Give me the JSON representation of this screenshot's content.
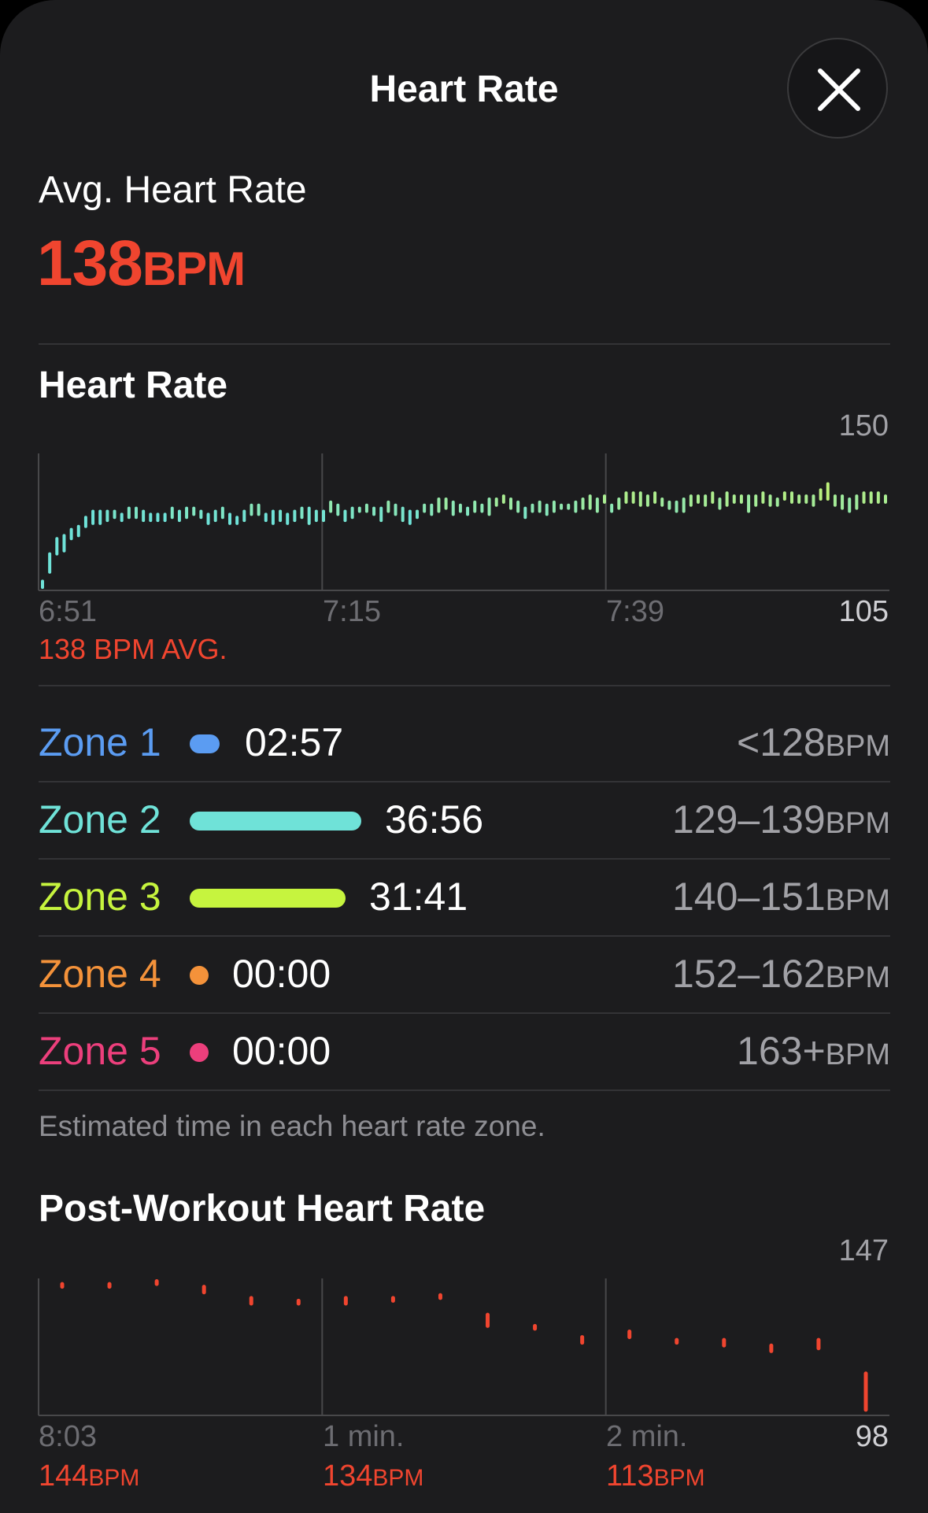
{
  "header": {
    "title": "Heart Rate",
    "close_icon": "close-icon"
  },
  "summary": {
    "label": "Avg. Heart Rate",
    "value": "138",
    "unit": "BPM"
  },
  "hr_section": {
    "title": "Heart Rate",
    "y_max": "150",
    "y_min": "105",
    "x_labels": [
      "6:51",
      "7:15",
      "7:39"
    ],
    "avg_note": "138 BPM AVG."
  },
  "zones": [
    {
      "name": "Zone 1",
      "time": "02:57",
      "range": "<128",
      "unit": "BPM",
      "color": "#5b9cf2"
    },
    {
      "name": "Zone 2",
      "time": "36:56",
      "range": "129–139",
      "unit": "BPM",
      "color": "#6fe2d8"
    },
    {
      "name": "Zone 3",
      "time": "31:41",
      "range": "140–151",
      "unit": "BPM",
      "color": "#c6f43e"
    },
    {
      "name": "Zone 4",
      "time": "00:00",
      "range": "152–162",
      "unit": "BPM",
      "color": "#f4923a"
    },
    {
      "name": "Zone 5",
      "time": "00:00",
      "range": "163+",
      "unit": "BPM",
      "color": "#ec3f7c"
    }
  ],
  "zone_note": "Estimated time in each heart rate zone.",
  "post_section": {
    "title": "Post-Workout Heart Rate",
    "y_max": "147",
    "y_min": "98",
    "x_labels": [
      "8:03",
      "1 min.",
      "2 min."
    ],
    "values": [
      {
        "value": "144",
        "unit": "BPM"
      },
      {
        "value": "134",
        "unit": "BPM"
      },
      {
        "value": "113",
        "unit": "BPM"
      }
    ]
  },
  "chart_data": [
    {
      "type": "bar",
      "title": "Heart Rate",
      "ylim": [
        105,
        150
      ],
      "x_ticks": [
        "6:51",
        "7:15",
        "7:39"
      ],
      "series": [
        {
          "values": [
            [
              106,
              108
            ],
            [
              111,
              117
            ],
            [
              117,
              122
            ],
            [
              118,
              123
            ],
            [
              122,
              125
            ],
            [
              123,
              126
            ],
            [
              126,
              129
            ],
            [
              127,
              131
            ],
            [
              127,
              131
            ],
            [
              128,
              131
            ],
            [
              129,
              131
            ],
            [
              128,
              130
            ],
            [
              129,
              132
            ],
            [
              129,
              132
            ],
            [
              128,
              131
            ],
            [
              128,
              130
            ],
            [
              128,
              130
            ],
            [
              128,
              130
            ],
            [
              129,
              132
            ],
            [
              128,
              131
            ],
            [
              129,
              132
            ],
            [
              130,
              132
            ],
            [
              129,
              131
            ],
            [
              127,
              130
            ],
            [
              128,
              131
            ],
            [
              129,
              132
            ],
            [
              127,
              130
            ],
            [
              127,
              129
            ],
            [
              128,
              131
            ],
            [
              130,
              133
            ],
            [
              130,
              133
            ],
            [
              128,
              130
            ],
            [
              127,
              131
            ],
            [
              128,
              131
            ],
            [
              127,
              130
            ],
            [
              128,
              131
            ],
            [
              129,
              132
            ],
            [
              127,
              132
            ],
            [
              128,
              131
            ],
            [
              128,
              131
            ],
            [
              131,
              134
            ],
            [
              130,
              133
            ],
            [
              128,
              131
            ],
            [
              129,
              132
            ],
            [
              131,
              132
            ],
            [
              131,
              133
            ],
            [
              130,
              132
            ],
            [
              128,
              132
            ],
            [
              131,
              134
            ],
            [
              130,
              133
            ],
            [
              128,
              132
            ],
            [
              127,
              131
            ],
            [
              129,
              131
            ],
            [
              131,
              133
            ],
            [
              130,
              133
            ],
            [
              131,
              135
            ],
            [
              132,
              135
            ],
            [
              130,
              134
            ],
            [
              131,
              133
            ],
            [
              130,
              132
            ],
            [
              131,
              134
            ],
            [
              131,
              133
            ],
            [
              130,
              135
            ],
            [
              133,
              135
            ],
            [
              134,
              136
            ],
            [
              132,
              135
            ],
            [
              131,
              134
            ],
            [
              129,
              132
            ],
            [
              131,
              133
            ],
            [
              131,
              134
            ],
            [
              130,
              133
            ],
            [
              131,
              134
            ],
            [
              132,
              133
            ],
            [
              132,
              133
            ],
            [
              131,
              134
            ],
            [
              132,
              135
            ],
            [
              132,
              136
            ],
            [
              131,
              135
            ],
            [
              134,
              136
            ],
            [
              131,
              133
            ],
            [
              132,
              135
            ],
            [
              134,
              137
            ],
            [
              134,
              137
            ],
            [
              133,
              137
            ],
            [
              133,
              136
            ],
            [
              134,
              137
            ],
            [
              133,
              135
            ],
            [
              132,
              134
            ],
            [
              131,
              134
            ],
            [
              131,
              135
            ],
            [
              133,
              136
            ],
            [
              134,
              136
            ],
            [
              133,
              136
            ],
            [
              134,
              137
            ],
            [
              132,
              135
            ],
            [
              133,
              137
            ],
            [
              134,
              136
            ],
            [
              134,
              136
            ],
            [
              131,
              136
            ],
            [
              133,
              136
            ],
            [
              134,
              137
            ],
            [
              133,
              136
            ],
            [
              133,
              135
            ],
            [
              135,
              137
            ],
            [
              134,
              137
            ],
            [
              134,
              136
            ],
            [
              134,
              136
            ],
            [
              133,
              136
            ],
            [
              135,
              138
            ],
            [
              135,
              140
            ],
            [
              133,
              136
            ],
            [
              132,
              136
            ],
            [
              131,
              135
            ],
            [
              132,
              136
            ],
            [
              134,
              137
            ],
            [
              134,
              137
            ],
            [
              134,
              137
            ],
            [
              134,
              136
            ]
          ]
        }
      ]
    },
    {
      "type": "bar",
      "title": "Post-Workout Heart Rate",
      "ylim": [
        98,
        147
      ],
      "x_ticks": [
        "8:03",
        "1 min.",
        "2 min."
      ],
      "series": [
        {
          "values": [
            [
              144,
              145
            ],
            [
              144,
              145
            ],
            [
              145,
              146
            ],
            [
              142,
              144
            ],
            [
              138,
              140
            ],
            [
              138,
              139
            ],
            [
              138,
              140
            ],
            [
              139,
              140
            ],
            [
              140,
              141
            ],
            [
              130,
              134
            ],
            [
              129,
              130
            ],
            [
              124,
              126
            ],
            [
              126,
              128
            ],
            [
              124,
              125
            ],
            [
              123,
              125
            ],
            [
              121,
              123
            ],
            [
              122,
              125
            ],
            [
              100,
              113
            ]
          ]
        }
      ]
    }
  ]
}
